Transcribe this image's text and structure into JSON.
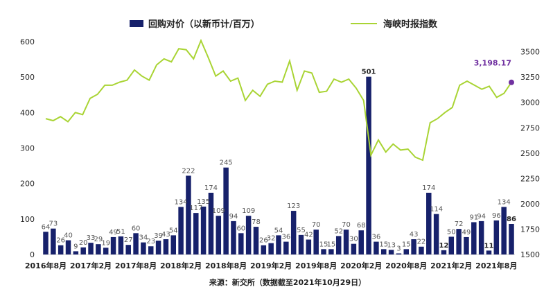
{
  "chart_data": {
    "type": "bar",
    "legend": {
      "bar_series": "回购对价（以新币计/百万）",
      "line_series": "海峡时报指数"
    },
    "source": "来源：新交所（数据截至2021年10月29日）",
    "left_axis": {
      "min": 0,
      "max": 600,
      "ticks": [
        "0",
        "100",
        "200",
        "300",
        "400",
        "500",
        "600"
      ]
    },
    "right_axis": {
      "min": 1500,
      "max": 3600,
      "ticks": [
        "1500",
        "1750",
        "2000",
        "2250",
        "2500",
        "2750",
        "3000",
        "3250",
        "3500"
      ]
    },
    "x_tick_labels": [
      "2016年8月",
      "2017年2月",
      "2017年8月",
      "2018年2月",
      "2018年8月",
      "2019年2月",
      "2019年8月",
      "2020年2月",
      "2020年8月",
      "2021年2月",
      "2021年8月"
    ],
    "bars": [
      64,
      73,
      26,
      40,
      9,
      20,
      33,
      29,
      19,
      49,
      51,
      27,
      60,
      34,
      23,
      39,
      43,
      54,
      134,
      222,
      117,
      135,
      174,
      109,
      245,
      94,
      60,
      109,
      78,
      26,
      32,
      54,
      36,
      123,
      55,
      42,
      70,
      15,
      15,
      52,
      70,
      30,
      68,
      501,
      36,
      15,
      13,
      3,
      15,
      43,
      22,
      174,
      114,
      12,
      50,
      72,
      49,
      91,
      94,
      11,
      96,
      134,
      86
    ],
    "line": [
      2840,
      2820,
      2860,
      2810,
      2900,
      2880,
      3040,
      3080,
      3170,
      3170,
      3200,
      3220,
      3320,
      3260,
      3220,
      3370,
      3430,
      3400,
      3530,
      3520,
      3430,
      3610,
      3440,
      3260,
      3310,
      3210,
      3240,
      3020,
      3120,
      3060,
      3180,
      3210,
      3200,
      3410,
      3120,
      3310,
      3290,
      3100,
      3110,
      3230,
      3200,
      3230,
      3140,
      3020,
      2480,
      2630,
      2510,
      2590,
      2530,
      2540,
      2460,
      2430,
      2800,
      2840,
      2900,
      2950,
      3170,
      3210,
      3170,
      3130,
      3160,
      3050,
      3090,
      3198.17
    ],
    "highlight_label": "3,198.17",
    "bar_color": "#17216b",
    "line_color": "#a9d434",
    "highlight_color": "#7030a0"
  }
}
